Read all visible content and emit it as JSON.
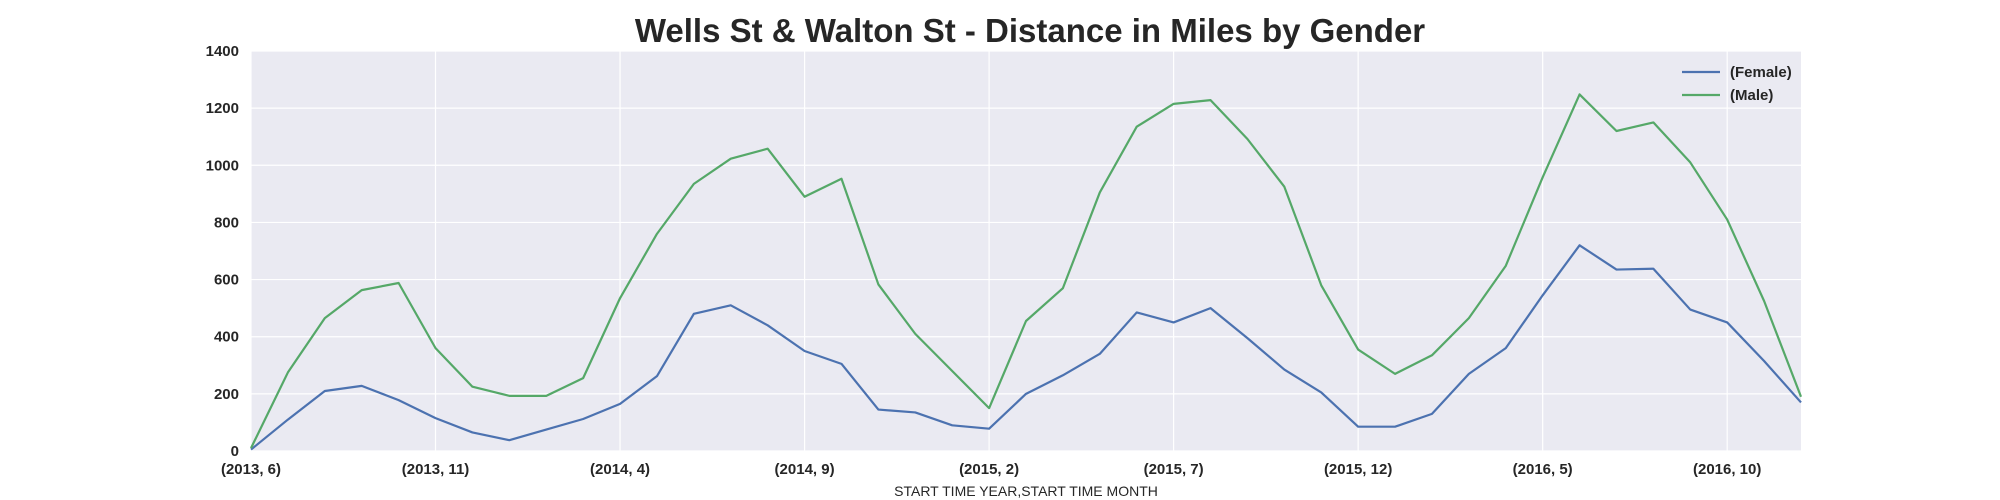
{
  "chart_data": {
    "type": "line",
    "title": "Wells St & Walton St - Distance in Miles by Gender",
    "xlabel": "START TIME YEAR,START TIME MONTH",
    "ylabel": "",
    "ylim": [
      0,
      1400
    ],
    "yticks": [
      0,
      200,
      400,
      600,
      800,
      1000,
      1200,
      1400
    ],
    "x_tick_labels": [
      "(2013, 6)",
      "(2013, 11)",
      "(2014, 4)",
      "(2014, 9)",
      "(2015, 2)",
      "(2015, 7)",
      "(2015, 12)",
      "(2016, 5)",
      "(2016, 10)"
    ],
    "x_tick_every": 5,
    "grid": true,
    "legend_position": "top-right",
    "x": [
      "(2013, 6)",
      "(2013, 7)",
      "(2013, 8)",
      "(2013, 9)",
      "(2013, 10)",
      "(2013, 11)",
      "(2013, 12)",
      "(2014, 1)",
      "(2014, 2)",
      "(2014, 3)",
      "(2014, 4)",
      "(2014, 5)",
      "(2014, 6)",
      "(2014, 7)",
      "(2014, 8)",
      "(2014, 9)",
      "(2014, 10)",
      "(2014, 11)",
      "(2014, 12)",
      "(2015, 1)",
      "(2015, 2)",
      "(2015, 3)",
      "(2015, 4)",
      "(2015, 5)",
      "(2015, 6)",
      "(2015, 7)",
      "(2015, 8)",
      "(2015, 9)",
      "(2015, 10)",
      "(2015, 11)",
      "(2015, 12)",
      "(2016, 1)",
      "(2016, 2)",
      "(2016, 3)",
      "(2016, 4)",
      "(2016, 5)",
      "(2016, 6)",
      "(2016, 7)",
      "(2016, 8)",
      "(2016, 9)",
      "(2016, 10)",
      "(2016, 11)",
      "(2016, 12)"
    ],
    "series": [
      {
        "name": "(Female)",
        "color": "#4c72b0",
        "values": [
          5,
          110,
          210,
          228,
          178,
          115,
          65,
          38,
          75,
          112,
          165,
          262,
          480,
          510,
          440,
          350,
          305,
          145,
          135,
          90,
          78,
          200,
          265,
          340,
          485,
          450,
          500,
          395,
          285,
          205,
          85,
          85,
          130,
          270,
          360,
          545,
          720,
          635,
          638,
          495,
          450,
          315,
          170
        ]
      },
      {
        "name": "(Male)",
        "color": "#55a868",
        "values": [
          10,
          275,
          465,
          563,
          588,
          360,
          225,
          193,
          193,
          255,
          535,
          760,
          935,
          1023,
          1058,
          890,
          953,
          583,
          410,
          280,
          150,
          455,
          570,
          905,
          1135,
          1215,
          1228,
          1092,
          925,
          580,
          355,
          270,
          335,
          465,
          648,
          958,
          1248,
          1120,
          1150,
          1010,
          810,
          525,
          190
        ]
      }
    ]
  },
  "colors": {
    "plot_background": "#eaeaf2",
    "grid": "#ffffff",
    "text": "#262626"
  }
}
